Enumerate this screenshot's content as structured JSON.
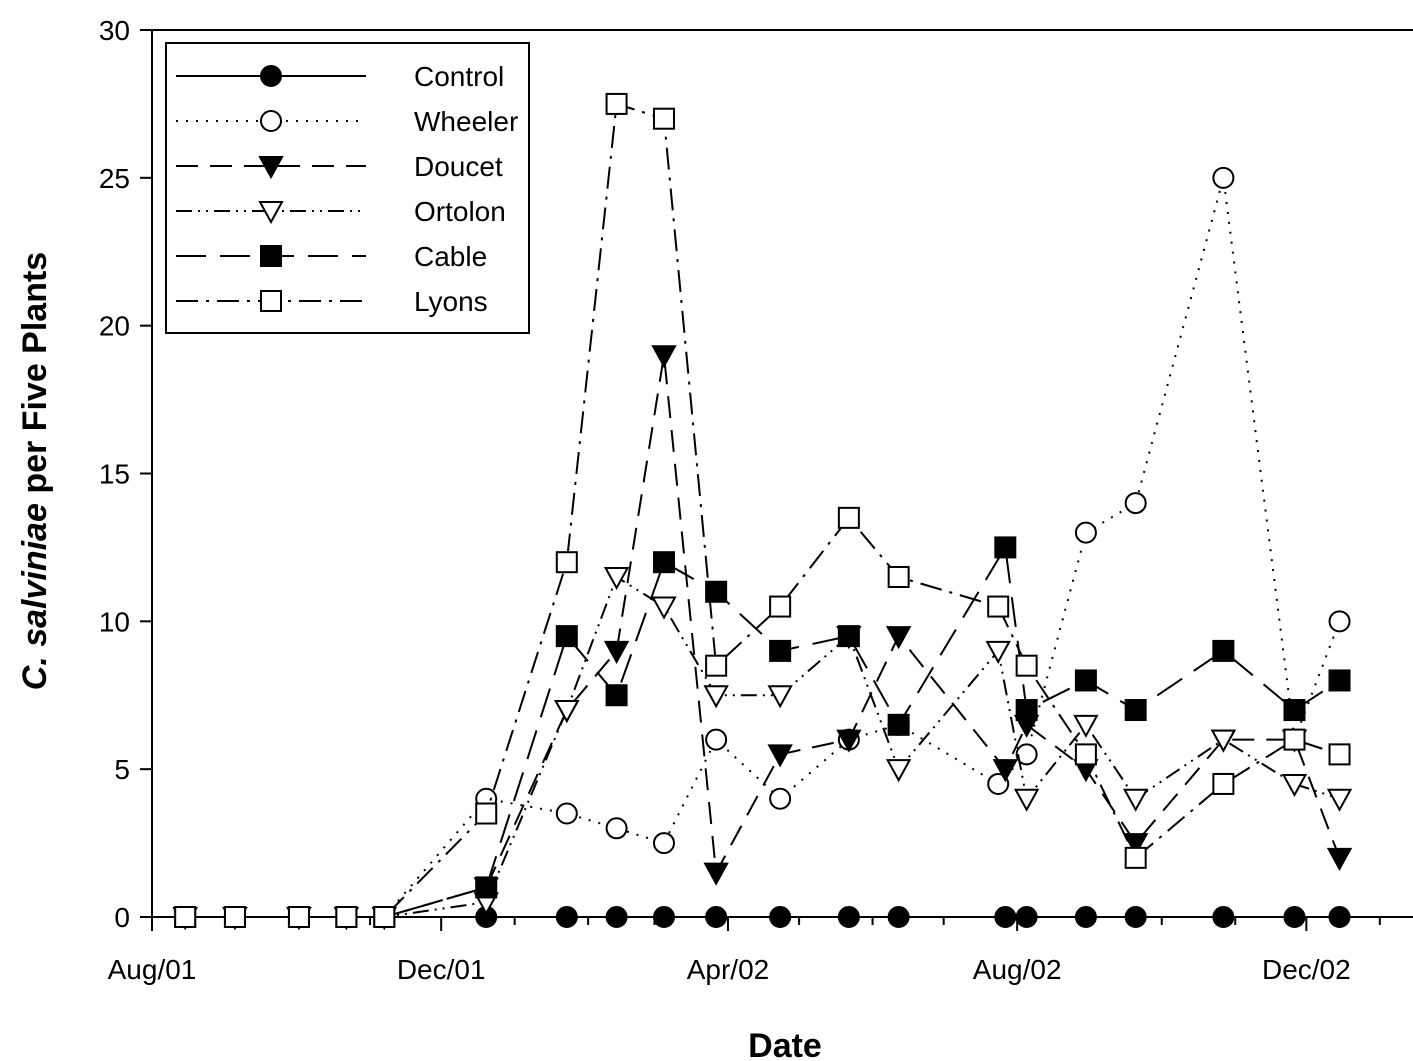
{
  "chart_data": {
    "type": "line",
    "xlabel": "Date",
    "ylabel_italic": "C. salviniae",
    "ylabel_rest": " per Five Plants",
    "ylim": [
      0,
      30
    ],
    "yticks": [
      0,
      5,
      10,
      15,
      20,
      25,
      30
    ],
    "x_axis": "date",
    "xlim": [
      "2001-08-01",
      "2003-01-15"
    ],
    "xticks": [
      {
        "date": "2001-08-01",
        "label": "Aug/01"
      },
      {
        "date": "2001-12-01",
        "label": "Dec/01"
      },
      {
        "date": "2002-04-01",
        "label": "Apr/02"
      },
      {
        "date": "2002-08-01",
        "label": "Aug/02"
      },
      {
        "date": "2002-12-01",
        "label": "Dec/02"
      }
    ],
    "legend_position": "top-left",
    "grid": false,
    "series": [
      {
        "name": "Control",
        "marker": "circle",
        "fill": "black",
        "dash": "solid",
        "points": [
          [
            "2001-08-15",
            0
          ],
          [
            "2001-09-05",
            0
          ],
          [
            "2001-10-02",
            0
          ],
          [
            "2001-10-22",
            0
          ],
          [
            "2001-11-07",
            0
          ],
          [
            "2001-12-20",
            0
          ],
          [
            "2002-01-23",
            0
          ],
          [
            "2002-02-13",
            0
          ],
          [
            "2002-03-05",
            0
          ],
          [
            "2002-03-27",
            0
          ],
          [
            "2002-04-23",
            0
          ],
          [
            "2002-05-22",
            0
          ],
          [
            "2002-06-12",
            0
          ],
          [
            "2002-07-27",
            0
          ],
          [
            "2002-08-05",
            0
          ],
          [
            "2002-08-30",
            0
          ],
          [
            "2002-09-20",
            0
          ],
          [
            "2002-10-27",
            0
          ],
          [
            "2002-11-26",
            0
          ],
          [
            "2002-12-15",
            0
          ]
        ]
      },
      {
        "name": "Wheeler",
        "marker": "circle",
        "fill": "white",
        "dash": "dotted",
        "points": [
          [
            "2001-08-15",
            0
          ],
          [
            "2001-09-05",
            0
          ],
          [
            "2001-10-02",
            0
          ],
          [
            "2001-10-22",
            0
          ],
          [
            "2001-11-07",
            0
          ],
          [
            "2001-12-20",
            4
          ],
          [
            "2002-01-23",
            3.5
          ],
          [
            "2002-02-13",
            3
          ],
          [
            "2002-03-05",
            2.5
          ],
          [
            "2002-03-27",
            6
          ],
          [
            "2002-04-23",
            4
          ],
          [
            "2002-05-22",
            6
          ],
          [
            "2002-06-12",
            6.5
          ],
          [
            "2002-07-24",
            4.5
          ],
          [
            "2002-08-05",
            5.5
          ],
          [
            "2002-08-30",
            13
          ],
          [
            "2002-09-20",
            14
          ],
          [
            "2002-10-27",
            25
          ],
          [
            "2002-11-26",
            6
          ],
          [
            "2002-12-15",
            10
          ]
        ]
      },
      {
        "name": "Doucet",
        "marker": "triangle-down",
        "fill": "black",
        "dash": "dashed",
        "points": [
          [
            "2001-08-15",
            0
          ],
          [
            "2001-09-05",
            0
          ],
          [
            "2001-10-02",
            0
          ],
          [
            "2001-10-22",
            0
          ],
          [
            "2001-11-07",
            0
          ],
          [
            "2001-12-20",
            1
          ],
          [
            "2002-01-23",
            7
          ],
          [
            "2002-02-13",
            9
          ],
          [
            "2002-03-05",
            19
          ],
          [
            "2002-03-27",
            1.5
          ],
          [
            "2002-04-23",
            5.5
          ],
          [
            "2002-05-22",
            6
          ],
          [
            "2002-06-12",
            9.5
          ],
          [
            "2002-07-27",
            5
          ],
          [
            "2002-08-05",
            6.5
          ],
          [
            "2002-08-30",
            5
          ],
          [
            "2002-09-20",
            2.5
          ],
          [
            "2002-10-27",
            6
          ],
          [
            "2002-11-26",
            6
          ],
          [
            "2002-12-15",
            2
          ]
        ]
      },
      {
        "name": "Ortolon",
        "marker": "triangle-down",
        "fill": "white",
        "dash": "dashdotdot",
        "points": [
          [
            "2001-08-15",
            0
          ],
          [
            "2001-09-05",
            0
          ],
          [
            "2001-10-02",
            0
          ],
          [
            "2001-10-22",
            0
          ],
          [
            "2001-11-07",
            0
          ],
          [
            "2001-12-20",
            0.5
          ],
          [
            "2002-01-23",
            7
          ],
          [
            "2002-02-13",
            11.5
          ],
          [
            "2002-03-05",
            10.5
          ],
          [
            "2002-03-27",
            7.5
          ],
          [
            "2002-04-23",
            7.5
          ],
          [
            "2002-05-22",
            9.5
          ],
          [
            "2002-06-12",
            5
          ],
          [
            "2002-07-24",
            9
          ],
          [
            "2002-08-05",
            4
          ],
          [
            "2002-08-30",
            6.5
          ],
          [
            "2002-09-20",
            4
          ],
          [
            "2002-10-27",
            6
          ],
          [
            "2002-11-26",
            4.5
          ],
          [
            "2002-12-15",
            4
          ]
        ]
      },
      {
        "name": "Cable",
        "marker": "square",
        "fill": "black",
        "dash": "longdash",
        "points": [
          [
            "2001-08-15",
            0
          ],
          [
            "2001-09-05",
            0
          ],
          [
            "2001-10-02",
            0
          ],
          [
            "2001-10-22",
            0
          ],
          [
            "2001-11-07",
            0
          ],
          [
            "2001-12-20",
            1
          ],
          [
            "2002-01-23",
            9.5
          ],
          [
            "2002-02-13",
            7.5
          ],
          [
            "2002-03-05",
            12
          ],
          [
            "2002-03-27",
            11
          ],
          [
            "2002-04-23",
            9
          ],
          [
            "2002-05-22",
            9.5
          ],
          [
            "2002-06-12",
            6.5
          ],
          [
            "2002-07-27",
            12.5
          ],
          [
            "2002-08-05",
            7
          ],
          [
            "2002-08-30",
            8
          ],
          [
            "2002-09-20",
            7
          ],
          [
            "2002-10-27",
            9
          ],
          [
            "2002-11-26",
            7
          ],
          [
            "2002-12-15",
            8
          ]
        ]
      },
      {
        "name": "Lyons",
        "marker": "square",
        "fill": "white",
        "dash": "dashdot",
        "points": [
          [
            "2001-08-15",
            0
          ],
          [
            "2001-09-05",
            0
          ],
          [
            "2001-10-02",
            0
          ],
          [
            "2001-10-22",
            0
          ],
          [
            "2001-11-07",
            0
          ],
          [
            "2001-12-20",
            3.5
          ],
          [
            "2002-01-23",
            12
          ],
          [
            "2002-02-13",
            27.5
          ],
          [
            "2002-03-05",
            27
          ],
          [
            "2002-03-27",
            8.5
          ],
          [
            "2002-04-23",
            10.5
          ],
          [
            "2002-05-22",
            13.5
          ],
          [
            "2002-06-12",
            11.5
          ],
          [
            "2002-07-24",
            10.5
          ],
          [
            "2002-08-05",
            8.5
          ],
          [
            "2002-08-30",
            5.5
          ],
          [
            "2002-09-20",
            2
          ],
          [
            "2002-10-27",
            4.5
          ],
          [
            "2002-11-26",
            6
          ],
          [
            "2002-12-15",
            5.5
          ]
        ]
      }
    ]
  }
}
